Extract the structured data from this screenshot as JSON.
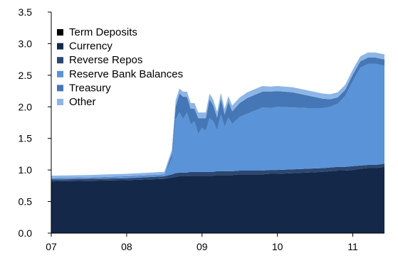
{
  "chart_data": {
    "type": "area",
    "stacked": true,
    "title": "",
    "xlabel": "",
    "ylabel": "",
    "ylim": [
      0,
      3.5
    ],
    "xlim": [
      2007.0,
      2011.42
    ],
    "y_ticks": [
      {
        "value": 0.0,
        "label": "0.0"
      },
      {
        "value": 0.5,
        "label": "0.5"
      },
      {
        "value": 1.0,
        "label": "1.0"
      },
      {
        "value": 1.5,
        "label": "1.5"
      },
      {
        "value": 2.0,
        "label": "2.0"
      },
      {
        "value": 2.5,
        "label": "2.5"
      },
      {
        "value": 3.0,
        "label": "3.0"
      },
      {
        "value": 3.5,
        "label": "3.5"
      }
    ],
    "x_ticks": [
      {
        "value": 2007,
        "label": "07"
      },
      {
        "value": 2008,
        "label": "08"
      },
      {
        "value": 2009,
        "label": "09"
      },
      {
        "value": 2010,
        "label": "10"
      },
      {
        "value": 2011,
        "label": "11"
      }
    ],
    "grid": false,
    "legend_position": "top-left",
    "x": [
      2007.0,
      2007.5,
      2008.0,
      2008.5,
      2008.6,
      2008.65,
      2008.7,
      2008.75,
      2008.8,
      2008.85,
      2008.9,
      2008.95,
      2009.0,
      2009.05,
      2009.1,
      2009.15,
      2009.2,
      2009.25,
      2009.3,
      2009.35,
      2009.4,
      2009.5,
      2009.6,
      2009.7,
      2009.8,
      2009.9,
      2010.0,
      2010.2,
      2010.4,
      2010.6,
      2010.7,
      2010.8,
      2010.9,
      2011.0,
      2011.1,
      2011.2,
      2011.3,
      2011.42
    ],
    "series": [
      {
        "name": "Term Deposits",
        "color": "#000000",
        "values": [
          0,
          0,
          0,
          0,
          0,
          0,
          0,
          0,
          0,
          0,
          0,
          0,
          0,
          0,
          0,
          0,
          0,
          0,
          0,
          0,
          0,
          0,
          0,
          0,
          0,
          0,
          0,
          0,
          0,
          0,
          0,
          0,
          0,
          0,
          0,
          0,
          0,
          0
        ]
      },
      {
        "name": "Currency",
        "color": "#14284a",
        "values": [
          0.82,
          0.83,
          0.84,
          0.86,
          0.88,
          0.89,
          0.9,
          0.9,
          0.9,
          0.91,
          0.91,
          0.91,
          0.91,
          0.91,
          0.91,
          0.91,
          0.92,
          0.92,
          0.92,
          0.92,
          0.92,
          0.93,
          0.93,
          0.93,
          0.93,
          0.94,
          0.94,
          0.95,
          0.96,
          0.97,
          0.98,
          0.99,
          0.99,
          1.0,
          1.02,
          1.03,
          1.03,
          1.05
        ]
      },
      {
        "name": "Reverse Repos",
        "color": "#2c4770",
        "values": [
          0.03,
          0.03,
          0.03,
          0.04,
          0.05,
          0.06,
          0.06,
          0.06,
          0.06,
          0.06,
          0.06,
          0.06,
          0.06,
          0.06,
          0.06,
          0.06,
          0.06,
          0.06,
          0.06,
          0.06,
          0.06,
          0.06,
          0.06,
          0.06,
          0.06,
          0.06,
          0.06,
          0.06,
          0.06,
          0.06,
          0.06,
          0.06,
          0.06,
          0.06,
          0.05,
          0.05,
          0.05,
          0.05
        ]
      },
      {
        "name": "Reserve Bank Balances",
        "color": "#5a93d8",
        "values": [
          0.01,
          0.01,
          0.02,
          0.02,
          0.25,
          0.85,
          0.95,
          0.85,
          0.95,
          0.75,
          0.8,
          0.6,
          0.7,
          0.65,
          0.85,
          0.8,
          0.65,
          0.9,
          0.7,
          0.85,
          0.75,
          0.85,
          0.9,
          0.95,
          1.0,
          0.98,
          1.0,
          0.98,
          0.96,
          0.95,
          0.96,
          1.0,
          1.12,
          1.35,
          1.55,
          1.6,
          1.6,
          1.55
        ]
      },
      {
        "name": "Treasury",
        "color": "#4577b6",
        "values": [
          0.01,
          0.01,
          0.01,
          0.01,
          0.08,
          0.2,
          0.3,
          0.35,
          0.25,
          0.25,
          0.2,
          0.25,
          0.15,
          0.2,
          0.3,
          0.25,
          0.2,
          0.25,
          0.2,
          0.25,
          0.2,
          0.22,
          0.25,
          0.25,
          0.25,
          0.26,
          0.25,
          0.24,
          0.2,
          0.15,
          0.12,
          0.1,
          0.1,
          0.1,
          0.1,
          0.1,
          0.1,
          0.1
        ]
      },
      {
        "name": "Other",
        "color": "#8db6e6",
        "values": [
          0.04,
          0.04,
          0.04,
          0.04,
          0.06,
          0.1,
          0.08,
          0.08,
          0.08,
          0.09,
          0.09,
          0.09,
          0.09,
          0.09,
          0.09,
          0.09,
          0.09,
          0.09,
          0.09,
          0.09,
          0.09,
          0.09,
          0.09,
          0.09,
          0.09,
          0.08,
          0.08,
          0.08,
          0.08,
          0.08,
          0.08,
          0.08,
          0.08,
          0.08,
          0.08,
          0.08,
          0.08,
          0.08
        ]
      }
    ]
  }
}
